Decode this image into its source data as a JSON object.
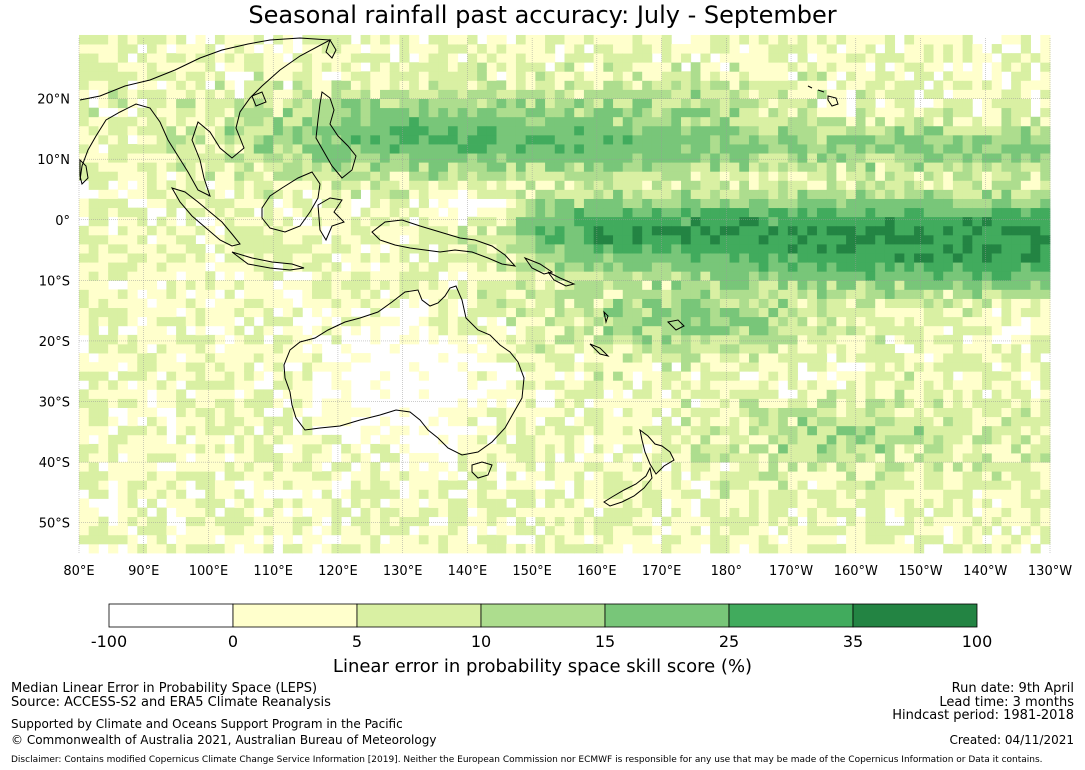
{
  "title": "Seasonal rainfall past accuracy: July - September",
  "map": {
    "lon_range": [
      80,
      230
    ],
    "lat_range": [
      -55,
      30
    ],
    "x_tick_labels": [
      "80°E",
      "90°E",
      "100°E",
      "110°E",
      "120°E",
      "130°E",
      "140°E",
      "150°E",
      "160°E",
      "170°E",
      "180°",
      "170°W",
      "160°W",
      "150°W",
      "140°W",
      "130°W"
    ],
    "y_tick_labels": [
      "20°N",
      "10°N",
      "0°",
      "10°S",
      "20°S",
      "30°S",
      "40°S",
      "50°S"
    ],
    "y_tick_values": [
      20,
      10,
      0,
      -10,
      -20,
      -30,
      -40,
      -50
    ],
    "grid": true
  },
  "colorbar": {
    "boundaries": [
      "-100",
      "0",
      "5",
      "10",
      "15",
      "25",
      "35",
      "100"
    ],
    "colors": [
      "#ffffff",
      "#ffffcc",
      "#d9f0a3",
      "#addd8e",
      "#78c679",
      "#41ab5d",
      "#238443"
    ],
    "label": "Linear error in probability space skill score (%)"
  },
  "meta": {
    "line1": "Median Linear Error in Probability Space (LEPS)",
    "line2": "Source: ACCESS-S2 and ERA5 Climate Reanalysis",
    "line3": "Supported by Climate and Oceans Support Program in the Pacific",
    "line4": "© Commonwealth of Australia 2021, Australian Bureau of Meteorology",
    "run_date": "Run date: 9th April",
    "lead_time": "Lead time: 3 months",
    "hindcast": "Hindcast period: 1981-2018",
    "created": "Created: 04/11/2021",
    "disclaimer": "Disclaimer: Contains modified Copernicus Climate Change Service Information [2019]. Neither the European Commission nor ECMWF is responsible for any use that may be made of the Copernicus Information or Data it contains."
  }
}
